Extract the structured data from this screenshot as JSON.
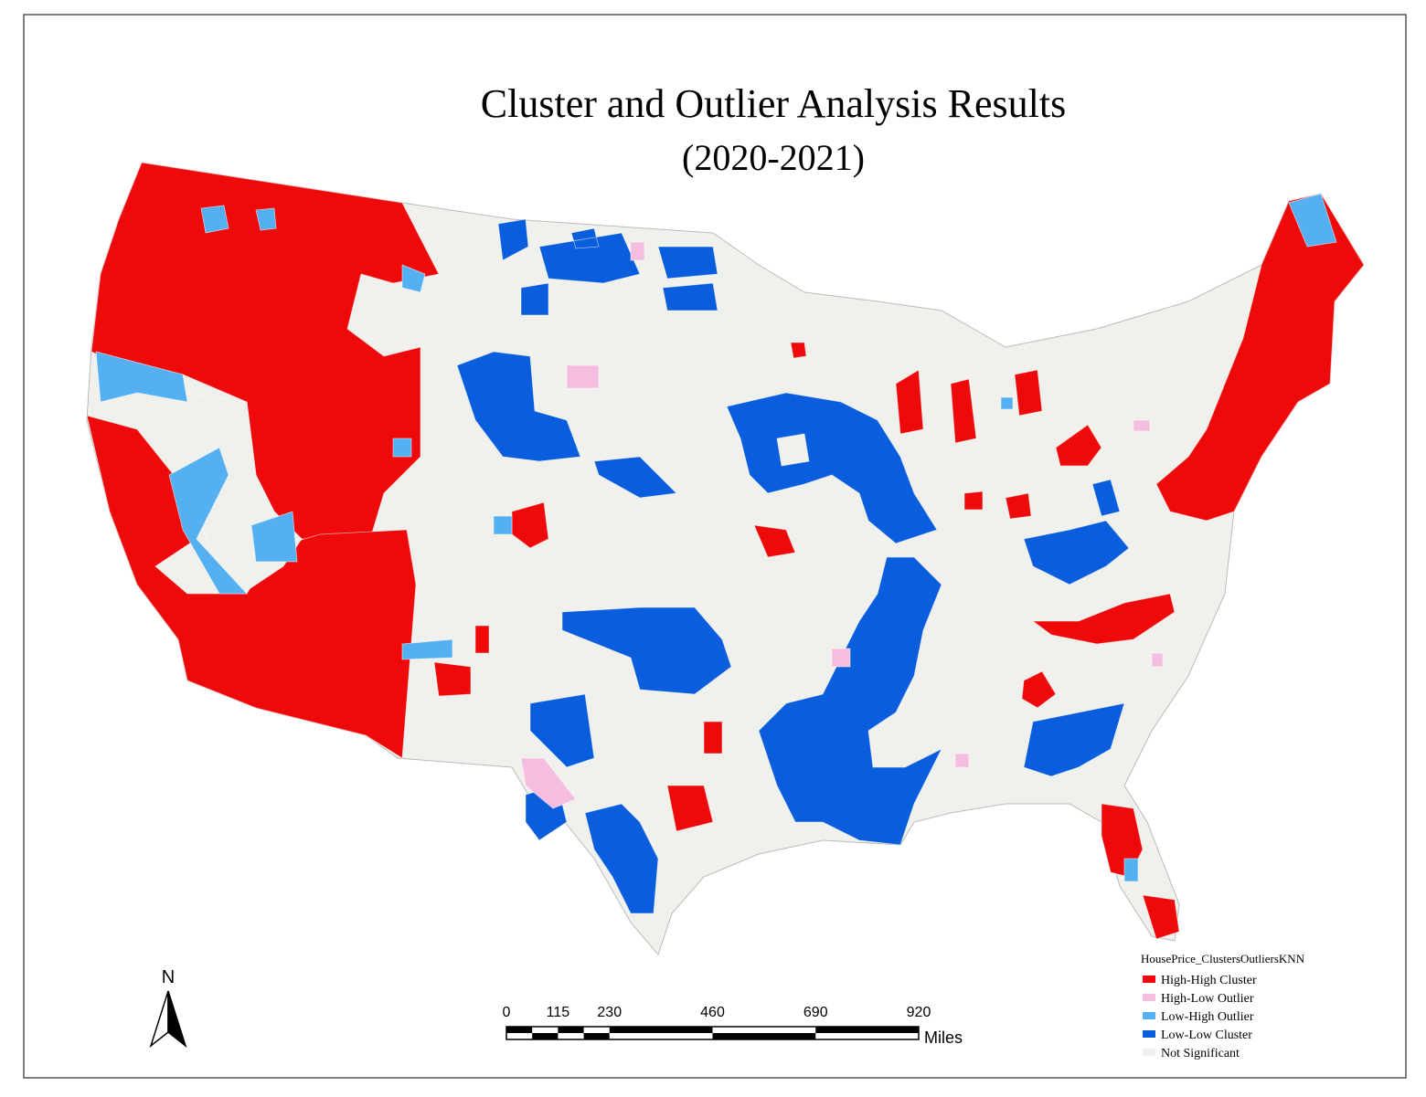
{
  "title": "Cluster and Outlier Analysis Results",
  "subtitle": "(2020-2021)",
  "north_arrow": {
    "label": "N"
  },
  "scale_bar": {
    "ticks": [
      0,
      115,
      230,
      460,
      690,
      920
    ],
    "unit": "Miles"
  },
  "legend": {
    "title": "HousePrice_ClustersOutliersKNN",
    "items": [
      {
        "label": "High-High Cluster",
        "color": "#ee0a0a"
      },
      {
        "label": "High-Low Outlier",
        "color": "#f5bde0"
      },
      {
        "label": "Low-High Outlier",
        "color": "#55b0f2"
      },
      {
        "label": "Low-Low Cluster",
        "color": "#0a5ddc"
      },
      {
        "label": "Not Significant",
        "color": "#f0f0ec"
      }
    ]
  }
}
